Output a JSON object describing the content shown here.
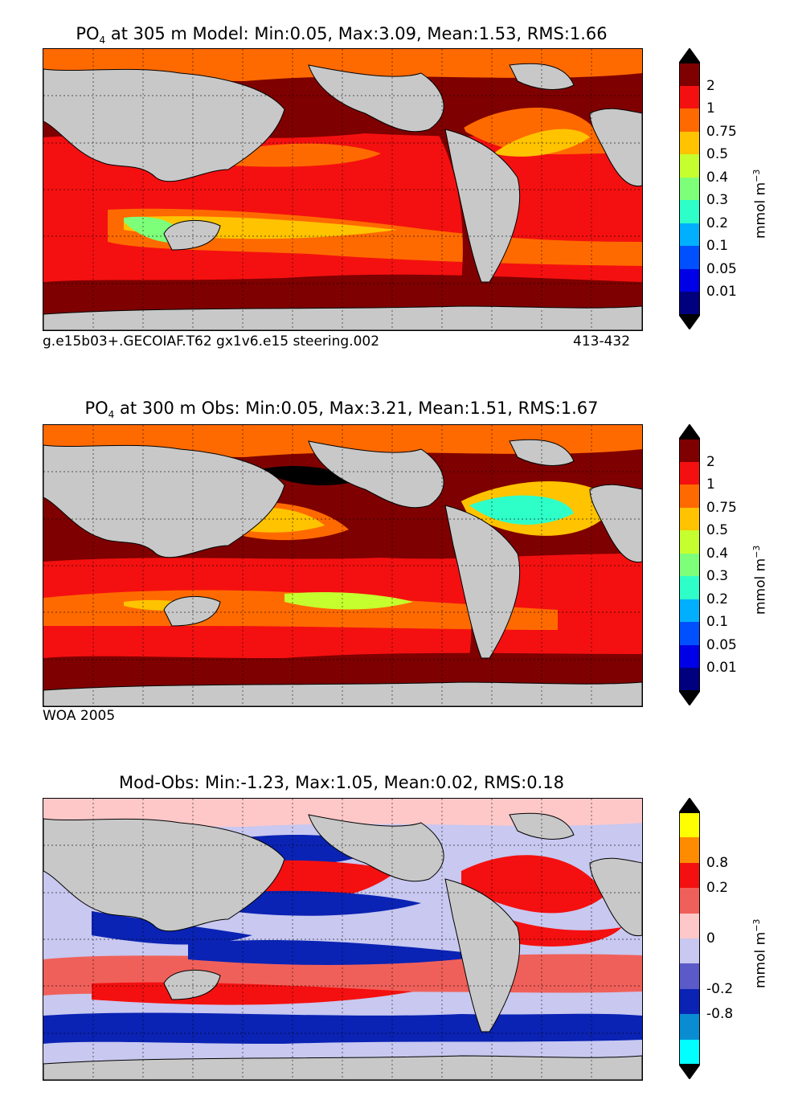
{
  "panels": [
    {
      "title_prefix": "PO",
      "title_sub": "4",
      "title_rest": " at 305 m Model: Min:0.05, Max:3.09, Mean:1.53, RMS:1.66",
      "caption_left": "g.e15b03+.GECOIAF.T62 gx1v6.e15 steering.002",
      "caption_right": "413-432",
      "colorbar": {
        "unit_base": "mmol m",
        "unit_exp": "−3",
        "ticks": [
          "2",
          "1",
          "0.75",
          "0.5",
          "0.4",
          "0.3",
          "0.2",
          "0.1",
          "0.05",
          "0.01"
        ],
        "colors": [
          "#7f0000",
          "#f41010",
          "#ff6a00",
          "#ffc300",
          "#c6ff2e",
          "#7dff7a",
          "#2effc8",
          "#00b0ff",
          "#0050ff",
          "#0000e6",
          "#00007f"
        ],
        "over": "#000000",
        "under": "#000000"
      }
    },
    {
      "title_prefix": "PO",
      "title_sub": "4",
      "title_rest": " at 300 m Obs: Min:0.05, Max:3.21, Mean:1.51, RMS:1.67",
      "caption_left": "WOA 2005",
      "caption_right": "",
      "colorbar": {
        "unit_base": "mmol m",
        "unit_exp": "−3",
        "ticks": [
          "2",
          "1",
          "0.75",
          "0.5",
          "0.4",
          "0.3",
          "0.2",
          "0.1",
          "0.05",
          "0.01"
        ],
        "colors": [
          "#7f0000",
          "#f41010",
          "#ff6a00",
          "#ffc300",
          "#c6ff2e",
          "#7dff7a",
          "#2effc8",
          "#00b0ff",
          "#0050ff",
          "#0000e6",
          "#00007f"
        ],
        "over": "#000000",
        "under": "#000000"
      }
    },
    {
      "title_prefix": "",
      "title_sub": "",
      "title_rest": "Mod-Obs: Min:-1.23, Max:1.05, Mean:0.02, RMS:0.18",
      "caption_left": "",
      "caption_right": "",
      "colorbar": {
        "unit_base": "mmol m",
        "unit_exp": "−3",
        "ticks": [
          "0.8",
          "0.2",
          "0",
          "-0.2",
          "-0.8"
        ],
        "colors": [
          "#ffff00",
          "#ff8c00",
          "#f41010",
          "#f0605a",
          "#ffc8c8",
          "#c8c8f0",
          "#5a5ac8",
          "#0a23b4",
          "#0a8cd2",
          "#00ffff"
        ],
        "over": "#000000",
        "under": "#000000"
      }
    }
  ],
  "colors": {
    "land": "#c8c8c8",
    "missing": "#ffffff"
  }
}
